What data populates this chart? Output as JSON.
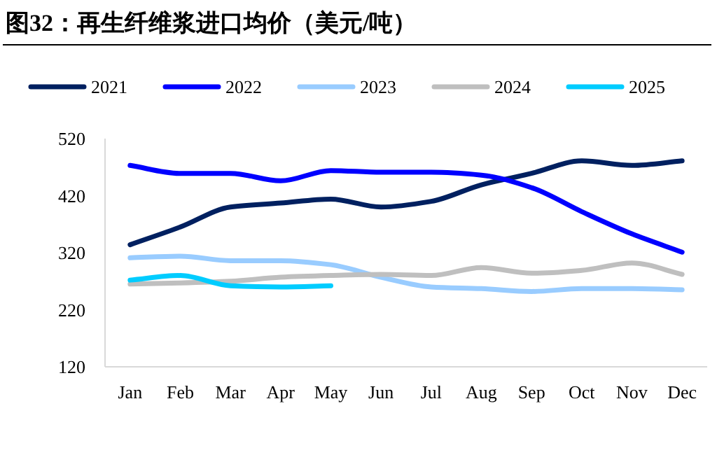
{
  "chart_data": {
    "type": "line",
    "title": "图32：再生纤维浆进口均价（美元/吨）",
    "categories": [
      "Jan",
      "Feb",
      "Mar",
      "Apr",
      "May",
      "Jun",
      "Jul",
      "Aug",
      "Sep",
      "Oct",
      "Nov",
      "Dec"
    ],
    "series": [
      {
        "name": "2021",
        "color": "#002060",
        "values": [
          334,
          365,
          400,
          407,
          414,
          400,
          410,
          439,
          459,
          481,
          473,
          481
        ]
      },
      {
        "name": "2022",
        "color": "#0000ff",
        "values": [
          473,
          459,
          459,
          446,
          464,
          461,
          461,
          456,
          434,
          392,
          353,
          321
        ]
      },
      {
        "name": "2023",
        "color": "#99ccff",
        "values": [
          311,
          314,
          306,
          306,
          299,
          277,
          260,
          257,
          252,
          257,
          257,
          255
        ]
      },
      {
        "name": "2024",
        "color": "#bfbfbf",
        "values": [
          265,
          267,
          270,
          277,
          280,
          282,
          280,
          294,
          284,
          289,
          302,
          282
        ]
      },
      {
        "name": "2025",
        "color": "#00ccff",
        "values": [
          272,
          280,
          262,
          260,
          262,
          null,
          null,
          null,
          null,
          null,
          null,
          null
        ]
      }
    ],
    "ylim": [
      120,
      520
    ],
    "yticks": [
      120,
      220,
      320,
      420,
      520
    ],
    "legend": "top"
  }
}
